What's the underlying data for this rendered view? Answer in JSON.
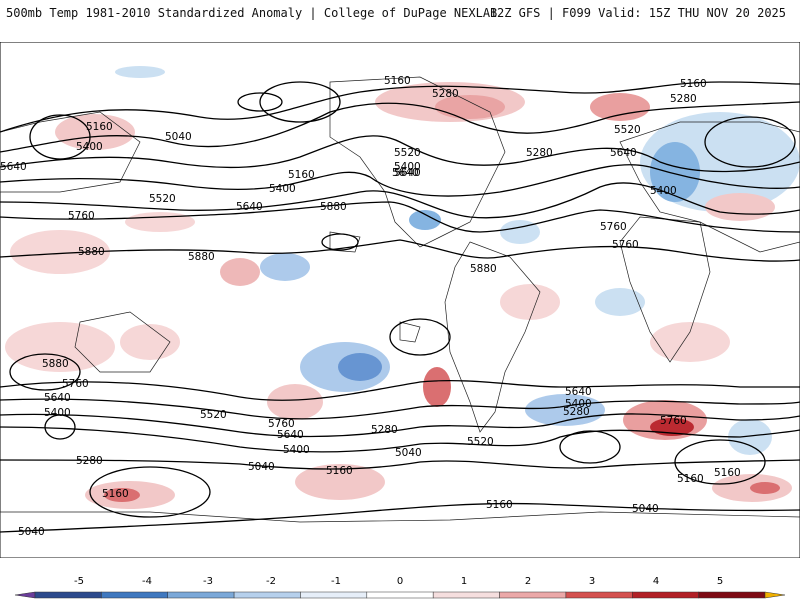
{
  "header": {
    "left_title": "500mb Temp 1981-2010 Standardized Anomaly | College of DuPage NEXLAB",
    "right_title": "12Z GFS | F099 Valid: 15Z THU NOV 20 2025"
  },
  "map": {
    "projection": "global equirectangular",
    "contour_labels": [
      "5160",
      "5160",
      "5280",
      "5280",
      "5040",
      "5160",
      "5400",
      "5520",
      "5640",
      "5520",
      "5640",
      "5280",
      "5160",
      "5400",
      "5640",
      "5760",
      "5880",
      "5640",
      "5400",
      "5520",
      "5760",
      "5880",
      "5880",
      "5880",
      "5760",
      "5640",
      "5400",
      "5880",
      "5760",
      "5640",
      "5400",
      "5520",
      "5760",
      "5640",
      "5400",
      "5280",
      "5520",
      "5040",
      "5160",
      "5040",
      "5280",
      "5640",
      "5400",
      "5280",
      "5760",
      "5160",
      "5160",
      "5160",
      "5040",
      "5160",
      "5040"
    ],
    "anomaly_colors": {
      "strong_cold": "#4a5fb8",
      "cold": "#7fb0e0",
      "cool": "#c9dff2",
      "mild": "#f6d5d5",
      "warm": "#e89a9a",
      "hot": "#c8282d"
    }
  },
  "colorbar": {
    "ticks": [
      "-5",
      "-4",
      "-3",
      "-2",
      "-1",
      "0",
      "1",
      "2",
      "3",
      "4",
      "5"
    ],
    "colors": [
      "#6a3d9a",
      "#2c4a8c",
      "#3f78bf",
      "#7ba8d8",
      "#b6d0ec",
      "#e6eef8",
      "#ffffff",
      "#f5dede",
      "#eba8a8",
      "#d4514f",
      "#b22026",
      "#7d0a14",
      "#f0b000"
    ]
  }
}
